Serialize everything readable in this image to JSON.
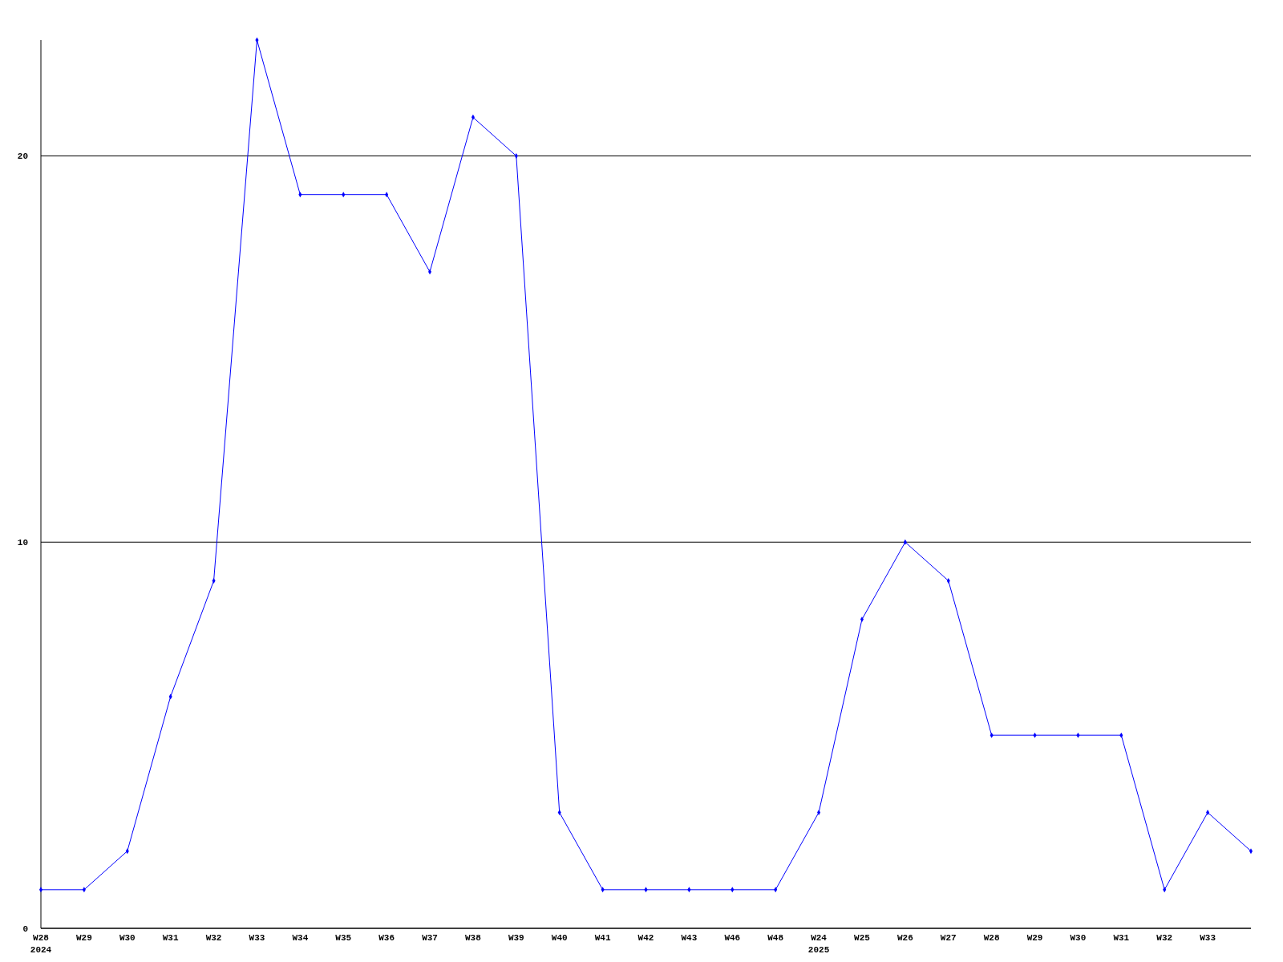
{
  "chart_data": {
    "type": "line",
    "categories": [
      "W28\n2024",
      "W29",
      "W30",
      "W31",
      "W32",
      "W33",
      "W34",
      "W35",
      "W36",
      "W37",
      "W38",
      "W39",
      "W40",
      "W41",
      "W42",
      "W43",
      "W46",
      "W48",
      "W24\n2025",
      "W25",
      "W26",
      "W27",
      "W28",
      "W29",
      "W30",
      "W31",
      "W32",
      "W33",
      null
    ],
    "series": [
      {
        "color": "#0000ff",
        "values": [
          1,
          1,
          2,
          6,
          9,
          23,
          19,
          19,
          19,
          17,
          21,
          20,
          3,
          1,
          1,
          1,
          1,
          1,
          3,
          8,
          10,
          9,
          5,
          5,
          5,
          5,
          1,
          3,
          2
        ]
      }
    ],
    "ylim": [
      0,
      23
    ],
    "yticks": [
      0,
      10,
      20
    ],
    "grid": "y",
    "marker": "diamond",
    "line_style": "solid"
  }
}
